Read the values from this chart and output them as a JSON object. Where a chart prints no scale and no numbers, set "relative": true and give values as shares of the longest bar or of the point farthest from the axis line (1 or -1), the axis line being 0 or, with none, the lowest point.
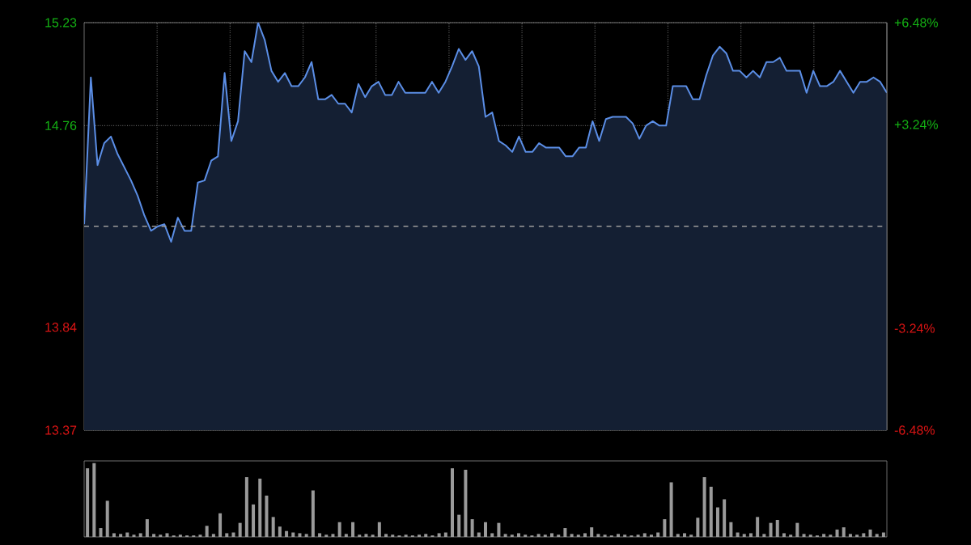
{
  "chart_data": [
    {
      "type": "area",
      "categories": [
        null,
        null,
        null,
        null,
        null,
        null,
        null,
        null,
        null,
        null,
        null,
        null,
        null,
        null,
        null,
        null,
        null,
        null,
        null,
        null,
        null,
        null,
        null,
        null,
        null,
        null,
        null,
        null,
        null,
        null,
        null,
        null,
        null,
        null,
        null,
        null,
        null,
        null,
        null,
        null,
        null,
        null,
        null,
        null,
        null,
        null,
        null,
        null,
        null,
        null,
        null,
        null,
        null,
        null,
        null,
        null,
        null,
        null,
        null,
        null,
        null,
        null,
        null,
        null,
        null,
        null,
        null,
        null,
        null,
        null,
        null,
        null,
        null,
        null,
        null,
        null,
        null,
        null,
        null,
        null,
        null,
        null,
        null,
        null,
        null,
        null,
        null,
        null,
        null,
        null,
        null,
        null,
        null,
        null,
        null,
        null,
        null,
        null,
        null,
        null,
        null,
        null,
        null,
        null,
        null,
        null,
        null,
        null,
        null,
        null,
        null,
        null,
        null,
        null,
        null,
        null,
        null,
        null,
        null,
        null,
        null
      ],
      "series": [
        {
          "color": "#5b8ee6",
          "values": [
            14.31,
            14.98,
            14.58,
            14.68,
            14.71,
            14.63,
            14.57,
            14.51,
            14.44,
            14.35,
            14.28,
            14.3,
            14.31,
            14.23,
            14.34,
            14.28,
            14.28,
            14.5,
            14.51,
            14.6,
            14.62,
            15.0,
            14.69,
            14.78,
            15.1,
            15.05,
            15.23,
            15.15,
            15.01,
            14.96,
            15.0,
            14.94,
            14.94,
            14.98,
            15.05,
            14.88,
            14.88,
            14.9,
            14.86,
            14.86,
            14.82,
            14.95,
            14.89,
            14.94,
            14.96,
            14.9,
            14.9,
            14.96,
            14.91,
            14.91,
            14.91,
            14.91,
            14.96,
            14.91,
            14.96,
            15.03,
            15.11,
            15.06,
            15.1,
            15.03,
            14.8,
            14.82,
            14.69,
            14.67,
            14.64,
            14.71,
            14.64,
            14.64,
            14.68,
            14.66,
            14.66,
            14.66,
            14.62,
            14.62,
            14.66,
            14.66,
            14.78,
            14.69,
            14.79,
            14.8,
            14.8,
            14.8,
            14.77,
            14.7,
            14.76,
            14.78,
            14.76,
            14.76,
            14.94,
            14.94,
            14.94,
            14.88,
            14.88,
            14.99,
            15.08,
            15.12,
            15.09,
            15.01,
            15.01,
            14.98,
            15.01,
            14.98,
            15.05,
            15.05,
            15.07,
            15.01,
            15.01,
            15.01,
            14.91,
            15.01,
            14.94,
            14.94,
            14.96,
            15.01,
            14.96,
            14.91,
            14.96,
            14.96,
            14.98,
            14.96,
            14.91
          ]
        }
      ],
      "ylim": [
        13.37,
        15.23
      ],
      "yticks": [
        {
          "value": 15.23,
          "label": "15.23"
        },
        {
          "value": 14.76,
          "label": "14.76"
        },
        {
          "value": 13.84,
          "label": "13.84"
        },
        {
          "value": 13.37,
          "label": "13.37"
        }
      ],
      "y2lim": [
        -6.48,
        6.48
      ],
      "y2ticks": [
        {
          "value": 6.48,
          "label": "+6.48%"
        },
        {
          "value": 3.24,
          "label": "+3.24%"
        },
        {
          "value": -3.24,
          "label": "-3.24%"
        },
        {
          "value": -6.48,
          "label": "-6.48%"
        }
      ],
      "ref_lines": [
        {
          "axis": "y",
          "value": 14.3,
          "color": "#9a9a9a",
          "line_style": "dashed"
        }
      ],
      "grid": true,
      "tick_labels": "y"
    },
    {
      "type": "bar",
      "relative": true,
      "color": "#9a9a9a",
      "categories": [
        null,
        null,
        null,
        null,
        null,
        null,
        null,
        null,
        null,
        null,
        null,
        null,
        null,
        null,
        null,
        null,
        null,
        null,
        null,
        null,
        null,
        null,
        null,
        null,
        null,
        null,
        null,
        null,
        null,
        null,
        null,
        null,
        null,
        null,
        null,
        null,
        null,
        null,
        null,
        null,
        null,
        null,
        null,
        null,
        null,
        null,
        null,
        null,
        null,
        null,
        null,
        null,
        null,
        null,
        null,
        null,
        null,
        null,
        null,
        null,
        null,
        null,
        null,
        null,
        null,
        null,
        null,
        null,
        null,
        null,
        null,
        null,
        null,
        null,
        null,
        null,
        null,
        null,
        null,
        null,
        null,
        null,
        null,
        null,
        null,
        null,
        null,
        null,
        null,
        null,
        null,
        null,
        null,
        null,
        null,
        null,
        null,
        null,
        null,
        null,
        null,
        null,
        null,
        null,
        null,
        null,
        null,
        null,
        null,
        null,
        null,
        null,
        null,
        null,
        null,
        null,
        null,
        null,
        null,
        null,
        null
      ],
      "values": [
        0.93,
        1.0,
        0.12,
        0.49,
        0.05,
        0.04,
        0.06,
        0.03,
        0.05,
        0.24,
        0.04,
        0.03,
        0.05,
        0.02,
        0.03,
        0.02,
        0.02,
        0.03,
        0.15,
        0.04,
        0.32,
        0.05,
        0.06,
        0.19,
        0.81,
        0.44,
        0.79,
        0.56,
        0.27,
        0.14,
        0.08,
        0.06,
        0.05,
        0.04,
        0.63,
        0.05,
        0.03,
        0.04,
        0.2,
        0.04,
        0.2,
        0.03,
        0.04,
        0.03,
        0.2,
        0.04,
        0.03,
        0.02,
        0.03,
        0.02,
        0.03,
        0.04,
        0.02,
        0.05,
        0.06,
        0.93,
        0.3,
        0.91,
        0.24,
        0.06,
        0.2,
        0.05,
        0.19,
        0.04,
        0.03,
        0.05,
        0.03,
        0.02,
        0.04,
        0.03,
        0.05,
        0.03,
        0.12,
        0.04,
        0.03,
        0.05,
        0.13,
        0.04,
        0.03,
        0.02,
        0.04,
        0.03,
        0.02,
        0.03,
        0.05,
        0.03,
        0.06,
        0.24,
        0.74,
        0.04,
        0.05,
        0.03,
        0.26,
        0.81,
        0.68,
        0.4,
        0.51,
        0.2,
        0.06,
        0.04,
        0.05,
        0.27,
        0.04,
        0.19,
        0.23,
        0.05,
        0.03,
        0.19,
        0.04,
        0.03,
        0.02,
        0.04,
        0.03,
        0.1,
        0.13,
        0.04,
        0.03,
        0.05,
        0.1,
        0.04,
        0.06
      ]
    }
  ]
}
